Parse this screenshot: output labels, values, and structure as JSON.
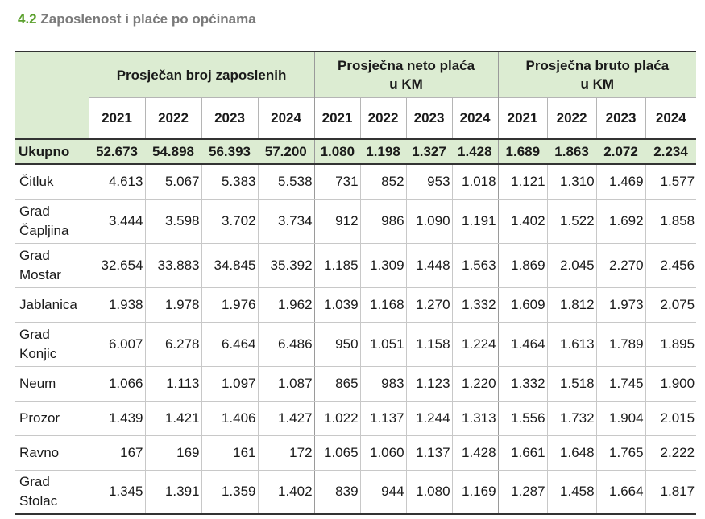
{
  "title": {
    "number": "4.2",
    "text": "Zaposlenost i plaće po općinama"
  },
  "groups": {
    "employees": "Prosječan broj zaposlenih",
    "net_line1": "Prosječna neto plaća",
    "net_line2": "u KM",
    "gross_line1": "Prosječna bruto plaća",
    "gross_line2": "u KM"
  },
  "years": [
    "2021",
    "2022",
    "2023",
    "2024",
    "2021",
    "2022",
    "2023",
    "2024",
    "2021",
    "2022",
    "2023",
    "2024"
  ],
  "total": {
    "name": "Ukupno",
    "values": [
      "52.673",
      "54.898",
      "56.393",
      "57.200",
      "1.080",
      "1.198",
      "1.327",
      "1.428",
      "1.689",
      "1.863",
      "2.072",
      "2.234"
    ]
  },
  "rows": [
    {
      "name1": "Čitluk",
      "name2": "",
      "values": [
        "4.613",
        "5.067",
        "5.383",
        "5.538",
        "731",
        "852",
        "953",
        "1.018",
        "1.121",
        "1.310",
        "1.469",
        "1.577"
      ]
    },
    {
      "name1": "Grad",
      "name2": "Čapljina",
      "values": [
        "3.444",
        "3.598",
        "3.702",
        "3.734",
        "912",
        "986",
        "1.090",
        "1.191",
        "1.402",
        "1.522",
        "1.692",
        "1.858"
      ]
    },
    {
      "name1": "Grad",
      "name2": "Mostar",
      "values": [
        "32.654",
        "33.883",
        "34.845",
        "35.392",
        "1.185",
        "1.309",
        "1.448",
        "1.563",
        "1.869",
        "2.045",
        "2.270",
        "2.456"
      ]
    },
    {
      "name1": "Jablanica",
      "name2": "",
      "values": [
        "1.938",
        "1.978",
        "1.976",
        "1.962",
        "1.039",
        "1.168",
        "1.270",
        "1.332",
        "1.609",
        "1.812",
        "1.973",
        "2.075"
      ]
    },
    {
      "name1": "Grad",
      "name2": "Konjic",
      "values": [
        "6.007",
        "6.278",
        "6.464",
        "6.486",
        "950",
        "1.051",
        "1.158",
        "1.224",
        "1.464",
        "1.613",
        "1.789",
        "1.895"
      ]
    },
    {
      "name1": "Neum",
      "name2": "",
      "values": [
        "1.066",
        "1.113",
        "1.097",
        "1.087",
        "865",
        "983",
        "1.123",
        "1.220",
        "1.332",
        "1.518",
        "1.745",
        "1.900"
      ]
    },
    {
      "name1": "Prozor",
      "name2": "",
      "values": [
        "1.439",
        "1.421",
        "1.406",
        "1.427",
        "1.022",
        "1.137",
        "1.244",
        "1.313",
        "1.556",
        "1.732",
        "1.904",
        "2.015"
      ]
    },
    {
      "name1": "Ravno",
      "name2": "",
      "values": [
        "167",
        "169",
        "161",
        "172",
        "1.065",
        "1.060",
        "1.137",
        "1.428",
        "1.661",
        "1.648",
        "1.765",
        "2.222"
      ]
    },
    {
      "name1": "Grad",
      "name2": "Stolac",
      "values": [
        "1.345",
        "1.391",
        "1.359",
        "1.402",
        "839",
        "944",
        "1.080",
        "1.169",
        "1.287",
        "1.458",
        "1.664",
        "1.817"
      ]
    }
  ]
}
